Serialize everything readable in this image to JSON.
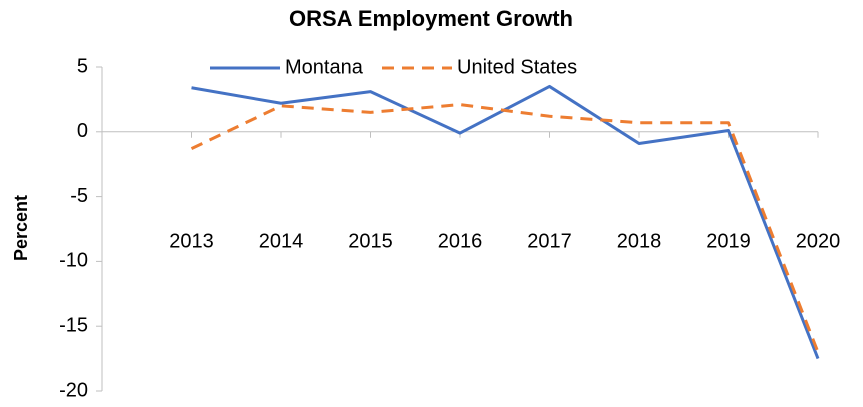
{
  "chart_data": {
    "type": "line",
    "title": "ORSA Employment Growth",
    "y_label": "Percent",
    "categories": [
      "2013",
      "2014",
      "2015",
      "2016",
      "2017",
      "2018",
      "2019",
      "2020"
    ],
    "series": [
      {
        "name": "Montana",
        "color": "#4472c4",
        "dash": false,
        "values": [
          3.4,
          2.2,
          3.1,
          -0.1,
          3.5,
          -0.9,
          0.1,
          -17.5
        ]
      },
      {
        "name": "United States",
        "color": "#ed7d31",
        "dash": true,
        "values": [
          -1.3,
          2.0,
          1.5,
          2.1,
          1.2,
          0.7,
          0.7,
          -17.0
        ]
      }
    ],
    "ylim": [
      -20,
      5
    ],
    "yticks": [
      -20,
      -15,
      -10,
      -5,
      0,
      5
    ],
    "grid": false,
    "legend": "top"
  }
}
